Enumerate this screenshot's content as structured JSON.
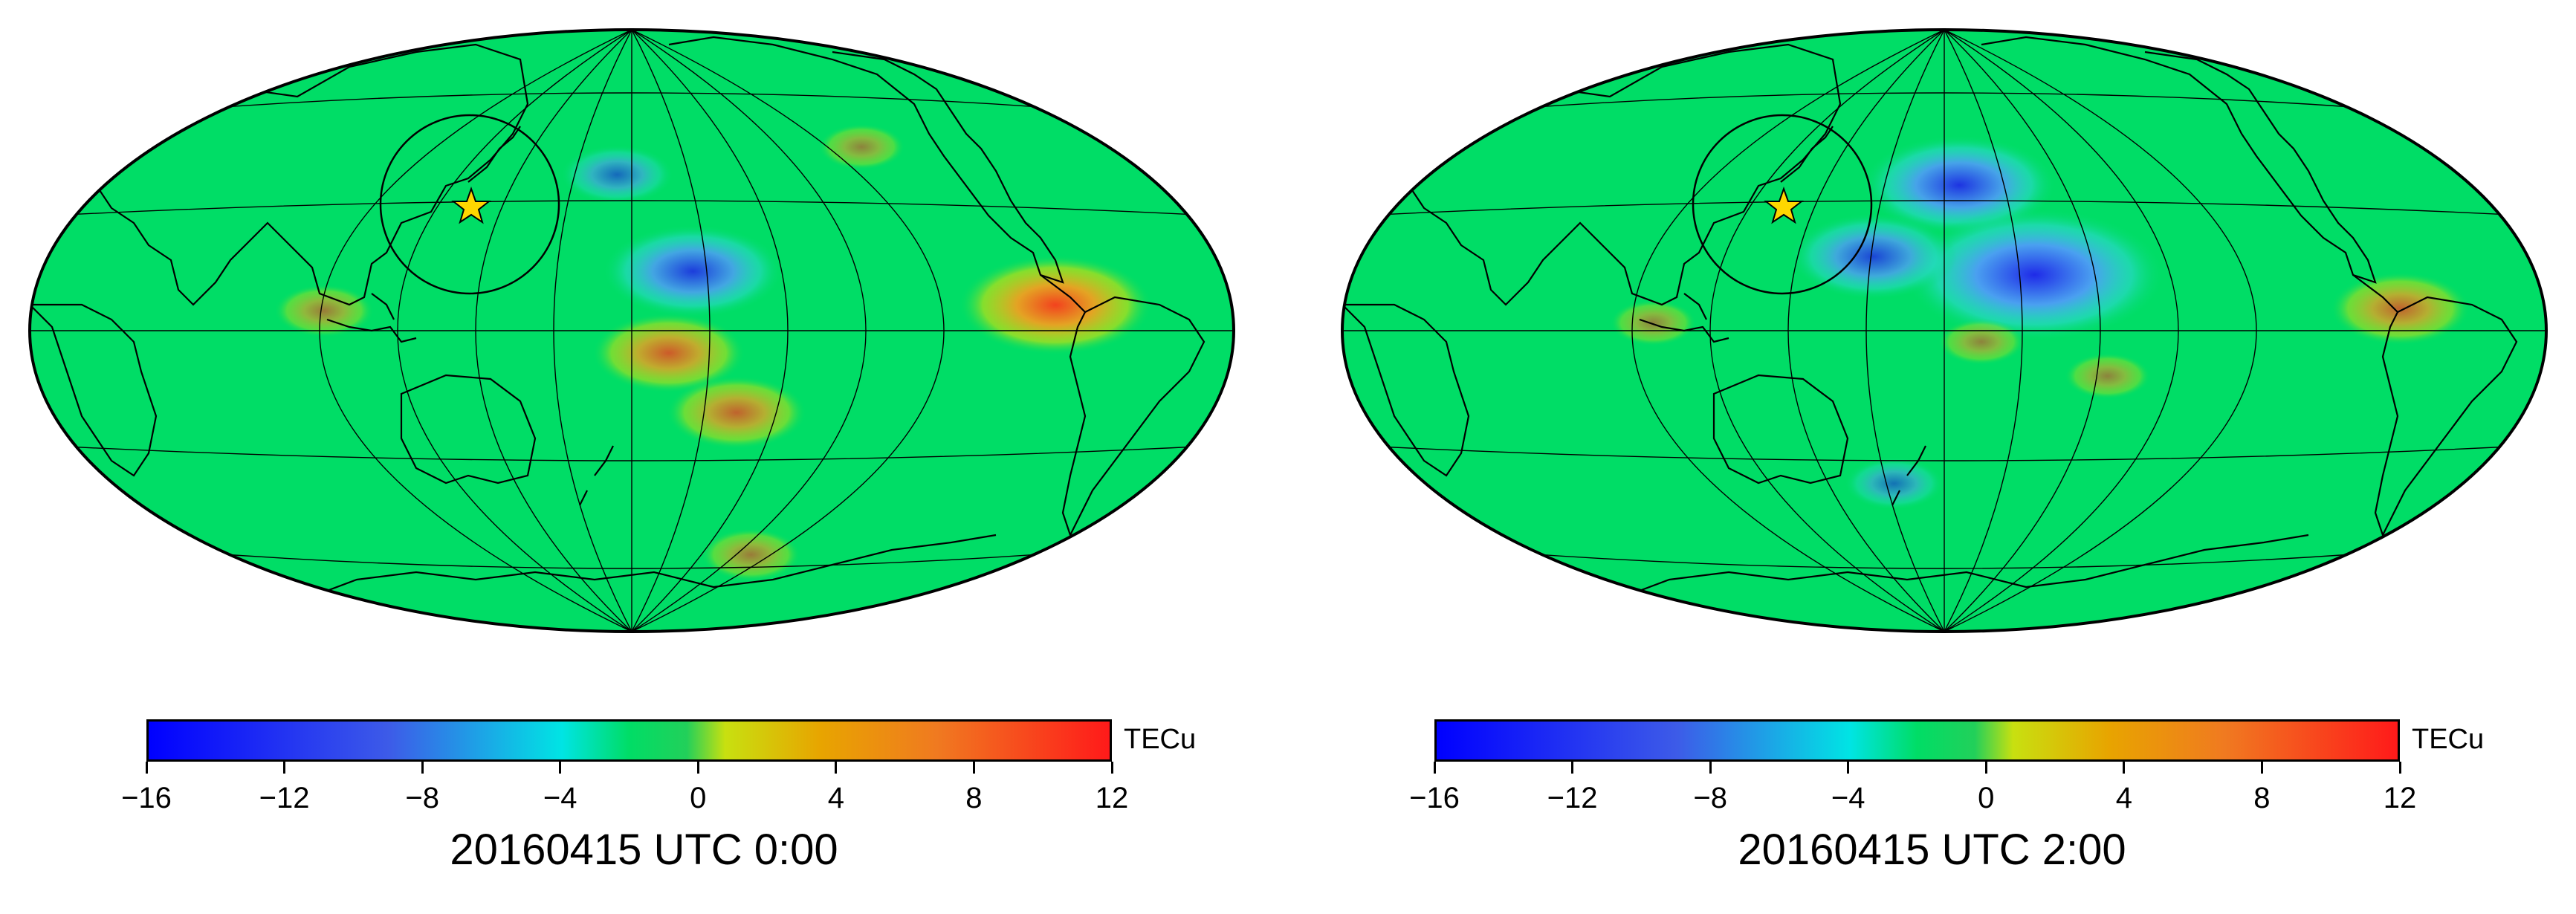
{
  "colors": {
    "ocean_green": "#00dd66",
    "land_outline": "#000000",
    "grid": "#000000",
    "epicenter_star": "#ffd700",
    "scale_min": "#0000ff",
    "scale_mid": "#00e4e4",
    "scale_max": "#ff1a1a"
  },
  "map": {
    "projection": "Hammer (Pacific-centred)",
    "epicenter_icon": "star-icon",
    "ring": "circle around epicenter"
  },
  "colorbar": {
    "unit": "TECu",
    "min": -16,
    "max": 12,
    "ticks": [
      "−16",
      "−12",
      "−8",
      "−4",
      "0",
      "4",
      "8",
      "12"
    ],
    "tick_values": [
      -16,
      -12,
      -8,
      -4,
      0,
      4,
      8,
      12
    ]
  },
  "panels": [
    {
      "title": "20160415 UTC 0:00",
      "anomalies": [
        {
          "kind": "negative",
          "lon": 175,
          "lat": 43,
          "level": -4
        },
        {
          "kind": "negative",
          "lon": 197,
          "lat": 16,
          "level": -9
        },
        {
          "kind": "positive",
          "lon": 190,
          "lat": -6,
          "level": 7
        },
        {
          "kind": "positive",
          "lon": 210,
          "lat": -22,
          "level": 6
        },
        {
          "kind": "positive",
          "lon": 300,
          "lat": 6,
          "level": 10
        },
        {
          "kind": "positive",
          "lon": 95,
          "lat": 5,
          "level": 3
        },
        {
          "kind": "positive",
          "lon": 268,
          "lat": 48,
          "level": 2
        },
        {
          "kind": "positive",
          "lon": 240,
          "lat": -62,
          "level": 3
        }
      ]
    },
    {
      "title": "20160415 UTC 2:00",
      "anomalies": [
        {
          "kind": "negative",
          "lon": 185,
          "lat": 40,
          "level": -10
        },
        {
          "kind": "negative",
          "lon": 205,
          "lat": 15,
          "level": -15
        },
        {
          "kind": "negative",
          "lon": 160,
          "lat": 20,
          "level": -8
        },
        {
          "kind": "negative",
          "lon": 163,
          "lat": -42,
          "level": -3
        },
        {
          "kind": "positive",
          "lon": 225,
          "lat": -12,
          "level": 2
        },
        {
          "kind": "positive",
          "lon": 310,
          "lat": 5,
          "level": 6
        },
        {
          "kind": "positive",
          "lon": 100,
          "lat": 2,
          "level": 2
        },
        {
          "kind": "positive",
          "lon": 190,
          "lat": -3,
          "level": 2
        }
      ]
    }
  ]
}
